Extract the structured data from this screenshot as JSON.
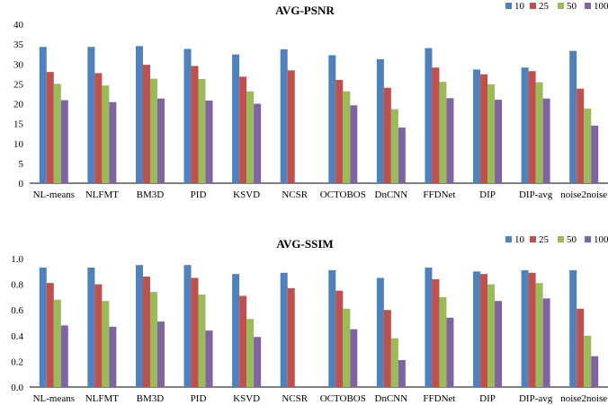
{
  "chart_data": [
    {
      "type": "bar",
      "title": "AVG-PSNR",
      "categories": [
        "NL-means",
        "NLFMT",
        "BM3D",
        "PID",
        "KSVD",
        "NCSR",
        "OCTOBOS",
        "DnCNN",
        "FFDNet",
        "DIP",
        "DIP-avg",
        "noise2noise"
      ],
      "series": [
        {
          "name": "10",
          "values": [
            34.3,
            34.3,
            34.5,
            33.8,
            32.4,
            33.7,
            32.2,
            31.2,
            34.0,
            28.6,
            29.1,
            33.3
          ]
        },
        {
          "name": "25",
          "values": [
            28.0,
            27.7,
            29.8,
            29.5,
            26.8,
            28.4,
            26.0,
            24.0,
            29.1,
            27.4,
            28.2,
            23.8
          ]
        },
        {
          "name": "50",
          "values": [
            25.0,
            24.6,
            26.3,
            26.2,
            23.1,
            null,
            23.1,
            18.6,
            25.5,
            24.9,
            25.4,
            18.8
          ]
        },
        {
          "name": "100",
          "values": [
            20.9,
            20.4,
            21.3,
            20.8,
            20.0,
            null,
            19.6,
            14.0,
            21.4,
            21.0,
            21.3,
            14.5
          ]
        }
      ],
      "ylim": [
        0,
        40
      ],
      "yticks": [
        0,
        5,
        10,
        15,
        20,
        25,
        30,
        35,
        40
      ],
      "yticks_labels": [
        "0",
        "5",
        "10",
        "15",
        "20",
        "25",
        "30",
        "35",
        "40"
      ],
      "legend_position": "top-right",
      "grid": false
    },
    {
      "type": "bar",
      "title": "AVG-SSIM",
      "categories": [
        "NL-means",
        "NLFMT",
        "BM3D",
        "PID",
        "KSVD",
        "NCSR",
        "OCTOBOS",
        "DnCNN",
        "FFDNet",
        "DIP",
        "DIP-avg",
        "noise2noise"
      ],
      "series": [
        {
          "name": "10",
          "values": [
            0.93,
            0.93,
            0.95,
            0.95,
            0.88,
            0.89,
            0.91,
            0.85,
            0.93,
            0.9,
            0.91,
            0.91
          ]
        },
        {
          "name": "25",
          "values": [
            0.81,
            0.8,
            0.86,
            0.85,
            0.71,
            0.77,
            0.75,
            0.6,
            0.84,
            0.88,
            0.89,
            0.61
          ]
        },
        {
          "name": "50",
          "values": [
            0.68,
            0.67,
            0.74,
            0.72,
            0.53,
            null,
            0.61,
            0.38,
            0.7,
            0.8,
            0.81,
            0.4
          ]
        },
        {
          "name": "100",
          "values": [
            0.48,
            0.47,
            0.51,
            0.44,
            0.39,
            null,
            0.45,
            0.21,
            0.54,
            0.67,
            0.69,
            0.24
          ]
        }
      ],
      "ylim": [
        0,
        1.0
      ],
      "yticks": [
        0,
        0.2,
        0.4,
        0.6,
        0.8,
        1.0
      ],
      "yticks_labels": [
        "0.0",
        "0.2",
        "0.4",
        "0.6",
        "0.8",
        "1.0"
      ],
      "legend_position": "top-right",
      "grid": false
    }
  ],
  "colors": {
    "series": [
      "#4f81bd",
      "#c0504d",
      "#9bbb59",
      "#8064a2"
    ],
    "axis": "#000000"
  }
}
